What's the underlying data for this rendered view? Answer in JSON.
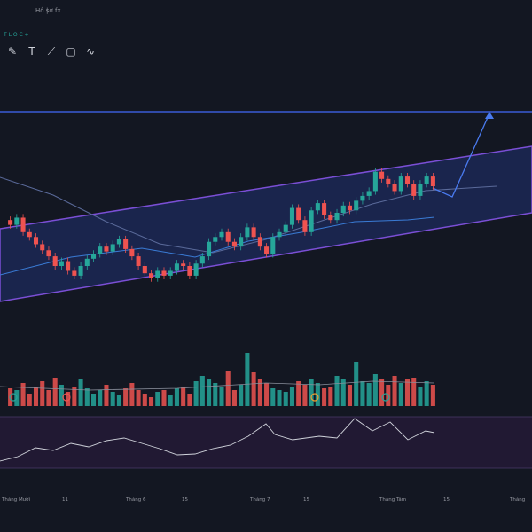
{
  "header": {
    "item1": "Hồ sơ",
    "item2": "|",
    "item3": "fx"
  },
  "ohlc": "T L O C +  ",
  "toolbar": {
    "tools": [
      {
        "name": "pencil-tool-icon",
        "glyph": "✎"
      },
      {
        "name": "text-tool-icon",
        "glyph": "T"
      },
      {
        "name": "line-tool-icon",
        "glyph": "⟋"
      },
      {
        "name": "rectangle-tool-icon",
        "glyph": "▢"
      },
      {
        "name": "wave-tool-icon",
        "glyph": "∿"
      }
    ]
  },
  "colors": {
    "background": "#131722",
    "up": "#26a69a",
    "down": "#ef5350",
    "channel_border": "#7b4fd6",
    "channel_fill": "#1d2b5c",
    "resistance": "#3b5bd6",
    "arrow": "#4a7bf0"
  },
  "chart_data": {
    "type": "candlestick",
    "x_labels": [
      "Tháng Mười",
      "11",
      "Tháng 6",
      "15",
      "Tháng 7",
      "15",
      "Tháng Tám",
      "15",
      "Tháng"
    ],
    "candles": [
      {
        "o": 300,
        "c": 296
      },
      {
        "o": 296,
        "c": 302
      },
      {
        "o": 302,
        "c": 290
      },
      {
        "o": 290,
        "c": 286
      },
      {
        "o": 286,
        "c": 280
      },
      {
        "o": 280,
        "c": 275
      },
      {
        "o": 275,
        "c": 270
      },
      {
        "o": 270,
        "c": 262
      },
      {
        "o": 262,
        "c": 266
      },
      {
        "o": 266,
        "c": 258
      },
      {
        "o": 258,
        "c": 254
      },
      {
        "o": 254,
        "c": 262
      },
      {
        "o": 262,
        "c": 268
      },
      {
        "o": 268,
        "c": 272
      },
      {
        "o": 272,
        "c": 278
      },
      {
        "o": 278,
        "c": 274
      },
      {
        "o": 274,
        "c": 280
      },
      {
        "o": 280,
        "c": 284
      },
      {
        "o": 284,
        "c": 276
      },
      {
        "o": 276,
        "c": 270
      },
      {
        "o": 270,
        "c": 262
      },
      {
        "o": 262,
        "c": 256
      },
      {
        "o": 256,
        "c": 252
      },
      {
        "o": 252,
        "c": 258
      },
      {
        "o": 258,
        "c": 254
      },
      {
        "o": 254,
        "c": 258
      },
      {
        "o": 258,
        "c": 264
      },
      {
        "o": 264,
        "c": 262
      },
      {
        "o": 262,
        "c": 254
      },
      {
        "o": 254,
        "c": 264
      },
      {
        "o": 264,
        "c": 270
      },
      {
        "o": 270,
        "c": 282
      },
      {
        "o": 282,
        "c": 286
      },
      {
        "o": 286,
        "c": 290
      },
      {
        "o": 290,
        "c": 282
      },
      {
        "o": 282,
        "c": 278
      },
      {
        "o": 278,
        "c": 286
      },
      {
        "o": 286,
        "c": 294
      },
      {
        "o": 294,
        "c": 286
      },
      {
        "o": 286,
        "c": 278
      },
      {
        "o": 278,
        "c": 272
      },
      {
        "o": 272,
        "c": 286
      },
      {
        "o": 286,
        "c": 290
      },
      {
        "o": 290,
        "c": 296
      },
      {
        "o": 296,
        "c": 310
      },
      {
        "o": 310,
        "c": 300
      },
      {
        "o": 300,
        "c": 290
      },
      {
        "o": 290,
        "c": 308
      },
      {
        "o": 308,
        "c": 314
      },
      {
        "o": 314,
        "c": 304
      },
      {
        "o": 304,
        "c": 300
      },
      {
        "o": 300,
        "c": 306
      },
      {
        "o": 306,
        "c": 312
      },
      {
        "o": 312,
        "c": 308
      },
      {
        "o": 308,
        "c": 316
      },
      {
        "o": 316,
        "c": 320
      },
      {
        "o": 320,
        "c": 324
      },
      {
        "o": 324,
        "c": 340
      },
      {
        "o": 340,
        "c": 334
      },
      {
        "o": 334,
        "c": 330
      },
      {
        "o": 330,
        "c": 324
      },
      {
        "o": 324,
        "c": 336
      },
      {
        "o": 336,
        "c": 330
      },
      {
        "o": 330,
        "c": 320
      },
      {
        "o": 320,
        "c": 330
      },
      {
        "o": 330,
        "c": 336
      },
      {
        "o": 336,
        "c": 328
      }
    ],
    "volumes": [
      20,
      18,
      26,
      14,
      22,
      28,
      18,
      32,
      24,
      16,
      22,
      30,
      20,
      14,
      18,
      24,
      16,
      12,
      20,
      26,
      18,
      14,
      10,
      16,
      18,
      12,
      20,
      22,
      14,
      28,
      34,
      30,
      26,
      22,
      40,
      18,
      24,
      60,
      38,
      30,
      26,
      20,
      18,
      16,
      22,
      28,
      24,
      30,
      26,
      20,
      22,
      34,
      30,
      24,
      50,
      28,
      26,
      36,
      30,
      24,
      34,
      26,
      30,
      32,
      22,
      28,
      24
    ]
  }
}
